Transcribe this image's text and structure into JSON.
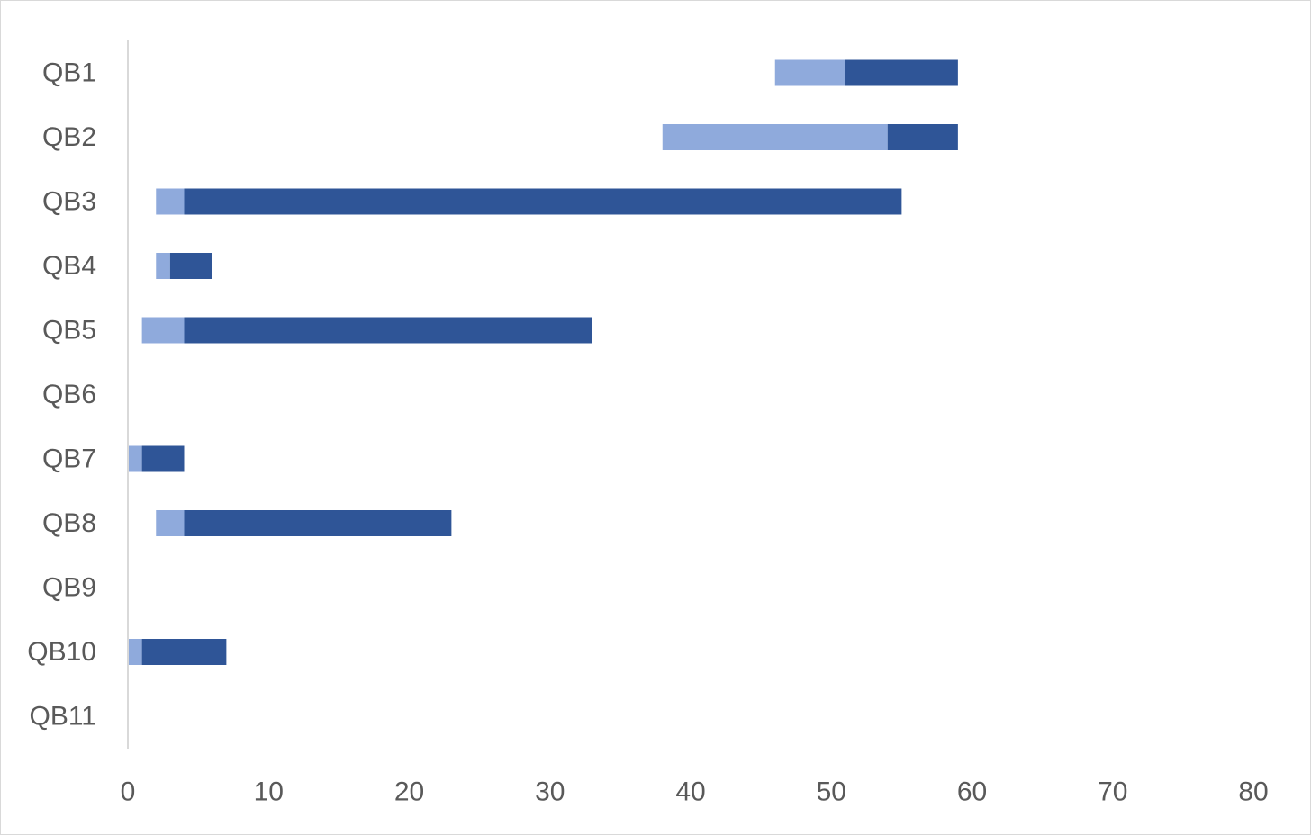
{
  "chart_data": {
    "type": "bar",
    "orientation": "horizontal",
    "stacked": "floating-range",
    "title": "",
    "xlabel": "",
    "ylabel": "",
    "xlim": [
      0,
      80
    ],
    "x_ticks": [
      0,
      10,
      20,
      30,
      40,
      50,
      60,
      70,
      80
    ],
    "categories": [
      "QB1",
      "QB2",
      "QB3",
      "QB4",
      "QB5",
      "QB6",
      "QB7",
      "QB8",
      "QB9",
      "QB10",
      "QB11"
    ],
    "series": [
      {
        "color": "#8faadc",
        "ranges": [
          [
            46,
            51
          ],
          [
            38,
            54
          ],
          [
            2,
            4
          ],
          [
            2,
            3
          ],
          [
            1,
            4
          ],
          null,
          [
            0,
            1
          ],
          [
            2,
            4
          ],
          null,
          [
            0,
            1
          ],
          null
        ]
      },
      {
        "color": "#2f5597",
        "ranges": [
          [
            51,
            59
          ],
          [
            54,
            59
          ],
          [
            4,
            55
          ],
          [
            3,
            6
          ],
          [
            4,
            33
          ],
          null,
          [
            1,
            4
          ],
          [
            4,
            23
          ],
          null,
          [
            1,
            7
          ],
          null
        ]
      }
    ],
    "grid": false,
    "legend": "none"
  },
  "colors": {
    "axis_line": "#d9d9d9",
    "tick_text": "#595959",
    "light_bar": "#8faadc",
    "dark_bar": "#2f5597"
  }
}
